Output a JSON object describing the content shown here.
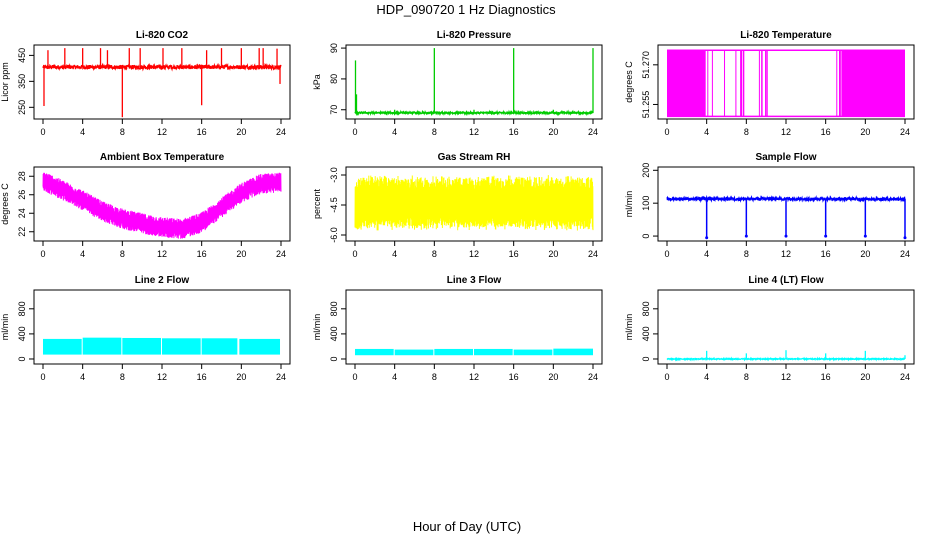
{
  "figure": {
    "title": "HDP_090720  1 Hz Diagnostics",
    "xlabel": "Hour of Day (UTC)"
  },
  "chart_data": [
    {
      "type": "line",
      "title": "Li-820 CO2",
      "ylabel": "Licor ppm",
      "color": "#ff0000",
      "xlim": [
        0,
        24
      ],
      "xticks": [
        0,
        4,
        8,
        12,
        16,
        20,
        24
      ],
      "ylim": [
        205,
        490
      ],
      "yticks": [
        250,
        350,
        450
      ],
      "ytick_labels": [
        "250",
        "350",
        "450"
      ],
      "baseline": 405,
      "noise": 8,
      "spikes": [
        {
          "x": 0.1,
          "y": 255
        },
        {
          "x": 0.5,
          "y": 470
        },
        {
          "x": 2.2,
          "y": 478
        },
        {
          "x": 4.0,
          "y": 478
        },
        {
          "x": 5.8,
          "y": 478
        },
        {
          "x": 6.5,
          "y": 470
        },
        {
          "x": 8.0,
          "y": 212
        },
        {
          "x": 8.7,
          "y": 478
        },
        {
          "x": 9.8,
          "y": 478
        },
        {
          "x": 12.1,
          "y": 478
        },
        {
          "x": 14.0,
          "y": 478
        },
        {
          "x": 16.0,
          "y": 258
        },
        {
          "x": 16.5,
          "y": 470
        },
        {
          "x": 18.0,
          "y": 478
        },
        {
          "x": 20.0,
          "y": 478
        },
        {
          "x": 21.8,
          "y": 478
        },
        {
          "x": 22.2,
          "y": 478
        },
        {
          "x": 23.6,
          "y": 476
        },
        {
          "x": 23.9,
          "y": 340
        }
      ]
    },
    {
      "type": "line",
      "title": "Li-820 Pressure",
      "ylabel": "kPa",
      "color": "#00cc00",
      "xlim": [
        0,
        24
      ],
      "xticks": [
        0,
        4,
        8,
        12,
        16,
        20,
        24
      ],
      "ylim": [
        67,
        91
      ],
      "yticks": [
        70,
        80,
        90
      ],
      "ytick_labels": [
        "70",
        "80",
        "90"
      ],
      "baseline": 69,
      "noise": 0.3,
      "spikes": [
        {
          "x": 0.05,
          "y": 86
        },
        {
          "x": 0.15,
          "y": 75
        },
        {
          "x": 4.0,
          "y": 70
        },
        {
          "x": 8.0,
          "y": 90
        },
        {
          "x": 12.0,
          "y": 70
        },
        {
          "x": 16.0,
          "y": 90
        },
        {
          "x": 20.0,
          "y": 70
        },
        {
          "x": 24.0,
          "y": 90
        }
      ]
    },
    {
      "type": "line",
      "title": "Li-820 Temperature",
      "ylabel": "degrees C",
      "color": "#ff00ff",
      "xlim": [
        0,
        24
      ],
      "xticks": [
        0,
        4,
        8,
        12,
        16,
        20,
        24
      ],
      "ylim": [
        51.2495,
        51.2775
      ],
      "yticks": [
        51.255,
        51.27
      ],
      "ytick_labels": [
        "51.255",
        "51.270"
      ],
      "levels": [
        51.2505,
        51.2755
      ],
      "dense_segments": [
        [
          0,
          3.9
        ],
        [
          17.6,
          24
        ]
      ],
      "sparse_segments": [
        {
          "x0": 4.0,
          "x1": 10.5,
          "count": 14
        },
        {
          "x0": 17.0,
          "x1": 17.6,
          "count": 4
        }
      ]
    },
    {
      "type": "line",
      "title": "Ambient Box Temperature",
      "ylabel": "degrees C",
      "color": "#ff00ff",
      "xlim": [
        0,
        24
      ],
      "xticks": [
        0,
        4,
        8,
        12,
        16,
        20,
        24
      ],
      "ylim": [
        21,
        29
      ],
      "yticks": [
        22,
        24,
        26,
        28
      ],
      "ytick_labels": [
        "22",
        "24",
        "26",
        "28"
      ],
      "trend": [
        {
          "x": 0,
          "y": 27.5
        },
        {
          "x": 2,
          "y": 26.5
        },
        {
          "x": 4,
          "y": 25.4
        },
        {
          "x": 6,
          "y": 24.2
        },
        {
          "x": 8,
          "y": 23.4
        },
        {
          "x": 10,
          "y": 22.9
        },
        {
          "x": 12,
          "y": 22.5
        },
        {
          "x": 14,
          "y": 22.3
        },
        {
          "x": 16,
          "y": 23.0
        },
        {
          "x": 18,
          "y": 24.6
        },
        {
          "x": 20,
          "y": 26.2
        },
        {
          "x": 22,
          "y": 27.2
        },
        {
          "x": 24,
          "y": 27.3
        }
      ],
      "band": 1.1
    },
    {
      "type": "line",
      "title": "Gas Stream RH",
      "ylabel": "percent",
      "color": "#ffff00",
      "xlim": [
        0,
        24
      ],
      "xticks": [
        0,
        4,
        8,
        12,
        16,
        20,
        24
      ],
      "ylim": [
        -6.3,
        -2.6
      ],
      "yticks": [
        -6.0,
        -4.5,
        -3.0
      ],
      "ytick_labels": [
        "-6.0",
        "-4.5",
        "-3.0"
      ],
      "center": -4.4,
      "band": 1.4
    },
    {
      "type": "line",
      "title": "Sample Flow",
      "ylabel": "ml/min",
      "color": "#0000ff",
      "xlim": [
        0,
        24
      ],
      "xticks": [
        0,
        4,
        8,
        12,
        16,
        20,
        24
      ],
      "ylim": [
        -15,
        210
      ],
      "yticks": [
        0,
        100,
        200
      ],
      "ytick_labels": [
        "0",
        "100",
        "200"
      ],
      "baseline": 113,
      "noise": 4,
      "dips": [
        {
          "x": 4.0,
          "y": -5
        },
        {
          "x": 8.0,
          "y": 0
        },
        {
          "x": 12.0,
          "y": 0
        },
        {
          "x": 16.0,
          "y": 0
        },
        {
          "x": 20.0,
          "y": 0
        },
        {
          "x": 24.0,
          "y": -5
        }
      ]
    },
    {
      "type": "area",
      "title": "Line 2 Flow",
      "ylabel": "ml/min",
      "color": "#00ffff",
      "xlim": [
        0,
        24
      ],
      "xticks": [
        0,
        4,
        8,
        12,
        16,
        20,
        24
      ],
      "ylim": [
        -80,
        1100
      ],
      "yticks": [
        0,
        400,
        800
      ],
      "ytick_labels": [
        "0",
        "400",
        "800"
      ],
      "low": 70,
      "high": 330,
      "segments": [
        [
          0,
          3.9,
          320
        ],
        [
          4.0,
          7.9,
          340
        ],
        [
          8.0,
          11.9,
          335
        ],
        [
          12.0,
          15.9,
          330
        ],
        [
          16.0,
          19.6,
          330
        ],
        [
          19.8,
          23.9,
          320
        ]
      ]
    },
    {
      "type": "area",
      "title": "Line 3 Flow",
      "ylabel": "ml/min",
      "color": "#00ffff",
      "xlim": [
        0,
        24
      ],
      "xticks": [
        0,
        4,
        8,
        12,
        16,
        20,
        24
      ],
      "ylim": [
        -80,
        1100
      ],
      "yticks": [
        0,
        400,
        800
      ],
      "ytick_labels": [
        "0",
        "400",
        "800"
      ],
      "low": 60,
      "high": 165,
      "segments": [
        [
          0,
          3.9,
          160
        ],
        [
          4.0,
          7.9,
          150
        ],
        [
          8.0,
          11.9,
          160
        ],
        [
          12.0,
          15.9,
          160
        ],
        [
          16.0,
          19.9,
          150
        ],
        [
          20.0,
          24.0,
          165
        ]
      ]
    },
    {
      "type": "line",
      "title": "Line 4 (LT) Flow",
      "ylabel": "ml/min",
      "color": "#00ffff",
      "xlim": [
        0,
        24
      ],
      "xticks": [
        0,
        4,
        8,
        12,
        16,
        20,
        24
      ],
      "ylim": [
        -80,
        1100
      ],
      "yticks": [
        0,
        400,
        800
      ],
      "ytick_labels": [
        "0",
        "400",
        "800"
      ],
      "baseline": 0,
      "noise": 8,
      "spikes": [
        {
          "x": 4.0,
          "y": 130
        },
        {
          "x": 8.0,
          "y": 90
        },
        {
          "x": 12.0,
          "y": 140
        },
        {
          "x": 16.0,
          "y": 90
        },
        {
          "x": 20.0,
          "y": 130
        },
        {
          "x": 24.0,
          "y": 60
        }
      ]
    }
  ]
}
